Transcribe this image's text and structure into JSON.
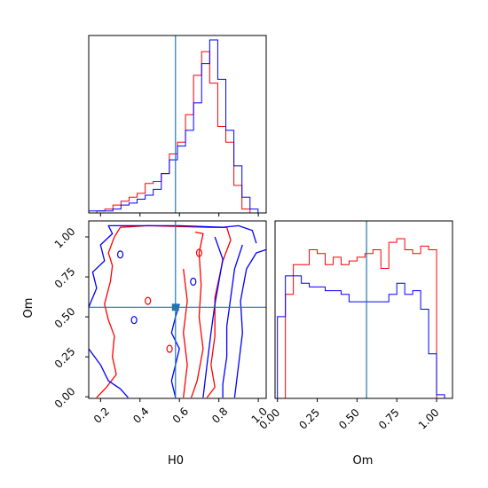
{
  "chart_data": {
    "type": "corner",
    "parameters": [
      "H0",
      "Om"
    ],
    "truth": {
      "H0": 0.58,
      "Om": 0.56
    },
    "colors": {
      "red": "#ff0000",
      "blue": "#0000ff",
      "truth": "#1f77b4"
    },
    "xlabel": "H0",
    "ylabel": "Om",
    "om_xlabel": "Om",
    "ranges": {
      "H0": [
        0.14,
        1.04
      ],
      "Om": [
        -0.01,
        1.1
      ]
    },
    "ticks": {
      "H0": [
        "0.2",
        "0.4",
        "0.6",
        "0.8",
        "1.0"
      ],
      "Om": [
        "0.00",
        "0.25",
        "0.50",
        "0.75",
        "1.00"
      ]
    },
    "h0_hist": {
      "edges_start": 0.14,
      "bin_width": 0.0409,
      "red": [
        0,
        1,
        2,
        4,
        6,
        8,
        10,
        15,
        16,
        20,
        30,
        36,
        50,
        70,
        82,
        66,
        44,
        36,
        14,
        2,
        0,
        0
      ],
      "blue": [
        1,
        1,
        1,
        2,
        4,
        5,
        7,
        9,
        12,
        20,
        27,
        34,
        42,
        56,
        76,
        88,
        68,
        42,
        24,
        8,
        2,
        0
      ]
    },
    "om_hist": {
      "edges_start": 0.0,
      "bin_width": 0.05,
      "red": [
        0,
        56,
        72,
        72,
        80,
        78,
        72,
        76,
        72,
        74,
        76,
        78,
        80,
        70,
        84,
        86,
        80,
        78,
        82,
        80,
        0,
        0
      ],
      "blue": [
        44,
        66,
        66,
        62,
        60,
        60,
        58,
        58,
        56,
        52,
        52,
        52,
        52,
        52,
        56,
        62,
        56,
        58,
        48,
        24,
        2,
        0
      ]
    },
    "contours": {
      "red": [
        [
          [
            0.27,
            1.0
          ],
          [
            0.3,
            1.06
          ],
          [
            0.44,
            1.07
          ],
          [
            0.75,
            1.06
          ],
          [
            0.84,
            1.06
          ],
          [
            0.86,
            0.98
          ],
          [
            0.82,
            0.85
          ],
          [
            0.78,
            0.62
          ],
          [
            0.78,
            0.38
          ],
          [
            0.76,
            0.2
          ],
          [
            0.78,
            0.06
          ],
          [
            0.74,
            -0.005
          ]
        ],
        [
          [
            0.18,
            -0.005
          ],
          [
            0.23,
            0.06
          ],
          [
            0.28,
            0.14
          ],
          [
            0.26,
            0.25
          ],
          [
            0.27,
            0.38
          ],
          [
            0.24,
            0.48
          ],
          [
            0.22,
            0.58
          ],
          [
            0.25,
            0.72
          ],
          [
            0.26,
            0.82
          ],
          [
            0.24,
            0.9
          ],
          [
            0.27,
            1.0
          ]
        ],
        [
          [
            0.66,
            -0.005
          ],
          [
            0.69,
            0.1
          ],
          [
            0.72,
            0.3
          ],
          [
            0.7,
            0.5
          ],
          [
            0.71,
            0.7
          ],
          [
            0.7,
            0.9
          ],
          [
            0.72,
            1.02
          ],
          [
            0.68,
            1.03
          ]
        ],
        [
          [
            0.62,
            -0.005
          ],
          [
            0.64,
            0.2
          ],
          [
            0.62,
            0.4
          ],
          [
            0.64,
            0.6
          ],
          [
            0.62,
            0.8
          ]
        ]
      ],
      "blue": [
        [
          [
            0.14,
            0.56
          ],
          [
            0.18,
            0.68
          ],
          [
            0.16,
            0.78
          ],
          [
            0.22,
            0.85
          ],
          [
            0.2,
            0.95
          ],
          [
            0.26,
            1.02
          ],
          [
            0.24,
            1.07
          ],
          [
            0.6,
            1.07
          ],
          [
            0.82,
            1.06
          ],
          [
            0.9,
            1.07
          ],
          [
            0.97,
            1.04
          ],
          [
            0.99,
            0.96
          ]
        ],
        [
          [
            0.14,
            0.3
          ],
          [
            0.2,
            0.2
          ],
          [
            0.24,
            0.1
          ],
          [
            0.3,
            0.05
          ],
          [
            0.34,
            -0.005
          ]
        ],
        [
          [
            0.92,
            0.95
          ],
          [
            0.88,
            0.8
          ],
          [
            0.86,
            0.62
          ],
          [
            0.84,
            0.44
          ],
          [
            0.84,
            0.25
          ],
          [
            0.82,
            0.08
          ],
          [
            0.82,
            -0.005
          ]
        ],
        [
          [
            0.88,
            -0.005
          ],
          [
            0.9,
            0.2
          ],
          [
            0.92,
            0.4
          ],
          [
            0.91,
            0.6
          ],
          [
            0.94,
            0.8
          ],
          [
            0.99,
            0.9
          ],
          [
            1.04,
            0.92
          ]
        ],
        [
          [
            0.72,
            -0.005
          ],
          [
            0.74,
            0.2
          ],
          [
            0.76,
            0.4
          ],
          [
            0.78,
            0.58
          ],
          [
            0.8,
            0.72
          ],
          [
            0.82,
            0.86
          ],
          [
            0.78,
            1.0
          ]
        ],
        [
          [
            0.58,
            -0.005
          ],
          [
            0.56,
            0.1
          ],
          [
            0.58,
            0.2
          ],
          [
            0.6,
            0.3
          ],
          [
            0.56,
            0.4
          ],
          [
            0.58,
            0.5
          ],
          [
            0.6,
            0.58
          ]
        ]
      ]
    }
  }
}
